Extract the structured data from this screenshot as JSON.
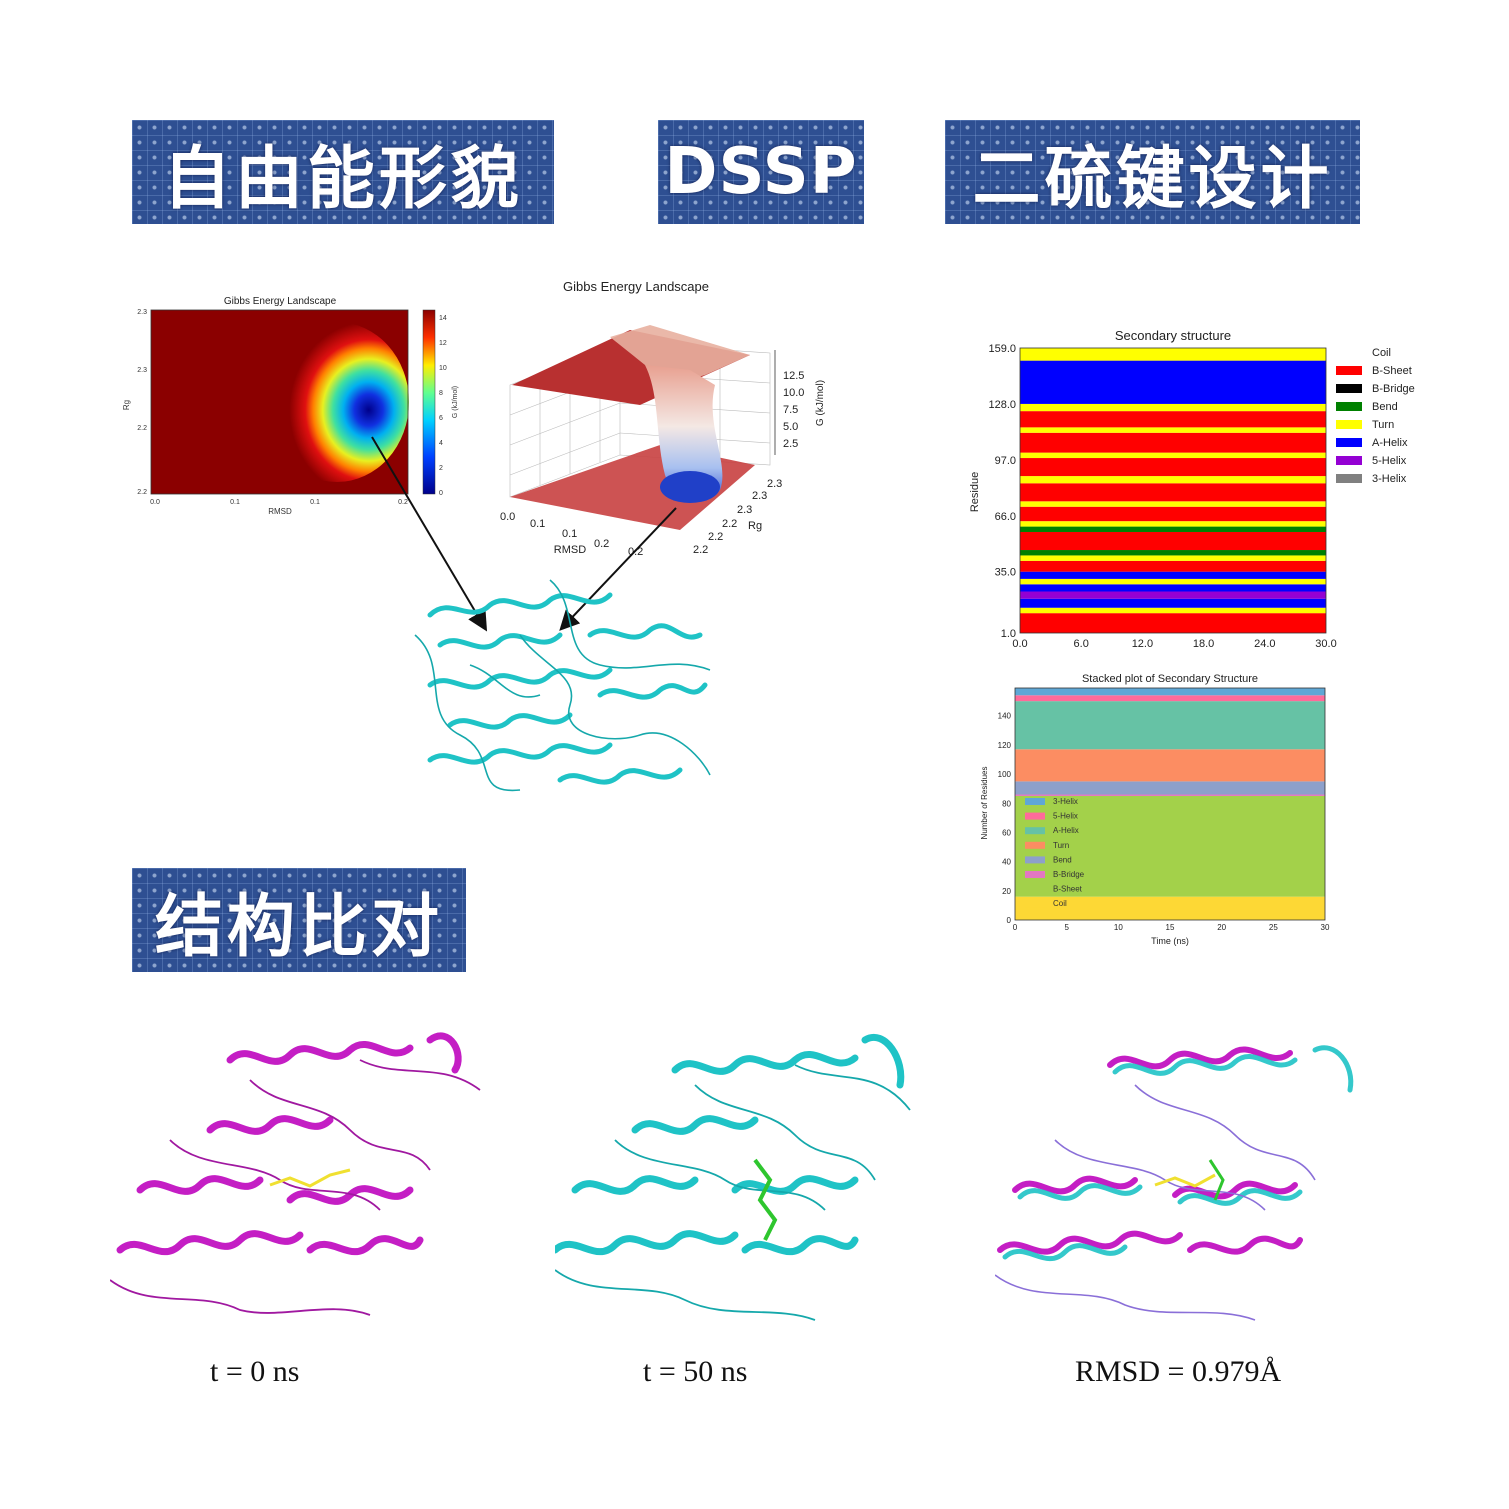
{
  "banners": {
    "free_energy": "自由能形貌",
    "dssp": "DSSP",
    "disulfide": "二硫键设计",
    "alignment": "结构比对"
  },
  "colors": {
    "banner_bg": "#2e4f92",
    "protein_cyan": "#1fc3c6",
    "protein_magenta": "#c41ec4",
    "ligand_yellow": "#f0e030",
    "ligand_green": "#2ec62e"
  },
  "fel2d": {
    "title": "Gibbs Energy Landscape",
    "xlabel": "RMSD",
    "ylabel": "Rg",
    "xticks": [
      "0.0",
      "0.1",
      "0.1",
      "0.2"
    ],
    "yticks": [
      "2.3",
      "2.3",
      "2.2",
      "2.2"
    ],
    "colorbar_label": "G (kJ/mol)",
    "colorbar_ticks": [
      "14",
      "12",
      "10",
      "8",
      "6",
      "4",
      "2",
      "0"
    ]
  },
  "fel3d": {
    "title": "Gibbs Energy Landscape",
    "xlabel": "RMSD",
    "ylabel": "Rg",
    "zlabel": "G (kJ/mol)",
    "xticks": [
      "0.0",
      "0.1",
      "0.1",
      "0.2",
      "0.2"
    ],
    "yticks": [
      "2.2",
      "2.2",
      "2.2",
      "2.3",
      "2.3",
      "2.3"
    ],
    "zticks": [
      "12.5",
      "10.0",
      "7.5",
      "5.0",
      "2.5"
    ]
  },
  "chart_data": [
    {
      "type": "heatmap",
      "title": "Secondary structure",
      "xlabel": "",
      "ylabel": "Residue",
      "xlim": [
        0,
        30
      ],
      "ylim": [
        1,
        159
      ],
      "xticks": [
        "0.0",
        "6.0",
        "12.0",
        "18.0",
        "24.0",
        "30.0"
      ],
      "yticks": [
        "1.0",
        "35.0",
        "66.0",
        "97.0",
        "128.0",
        "159.0"
      ],
      "legend": [
        {
          "name": "Coil",
          "color": "#ffffff"
        },
        {
          "name": "B-Sheet",
          "color": "#ff0000"
        },
        {
          "name": "B-Bridge",
          "color": "#000000"
        },
        {
          "name": "Bend",
          "color": "#008000"
        },
        {
          "name": "Turn",
          "color": "#ffff00"
        },
        {
          "name": "A-Helix",
          "color": "#0000ff"
        },
        {
          "name": "5-Helix",
          "color": "#9400d3"
        },
        {
          "name": "3-Helix",
          "color": "#808080"
        }
      ],
      "bands": [
        {
          "from": 1,
          "to": 12,
          "color": "#ff0000"
        },
        {
          "from": 12,
          "to": 15,
          "color": "#ffff00"
        },
        {
          "from": 15,
          "to": 20,
          "color": "#0000ff"
        },
        {
          "from": 20,
          "to": 24,
          "color": "#9400d3"
        },
        {
          "from": 24,
          "to": 28,
          "color": "#0000ff"
        },
        {
          "from": 28,
          "to": 31,
          "color": "#ffff00"
        },
        {
          "from": 31,
          "to": 35,
          "color": "#0000ff"
        },
        {
          "from": 35,
          "to": 41,
          "color": "#ff0000"
        },
        {
          "from": 41,
          "to": 44,
          "color": "#ffff00"
        },
        {
          "from": 44,
          "to": 47,
          "color": "#008000"
        },
        {
          "from": 47,
          "to": 57,
          "color": "#ff0000"
        },
        {
          "from": 57,
          "to": 60,
          "color": "#008000"
        },
        {
          "from": 60,
          "to": 63,
          "color": "#ffff00"
        },
        {
          "from": 63,
          "to": 71,
          "color": "#ff0000"
        },
        {
          "from": 71,
          "to": 74,
          "color": "#ffff00"
        },
        {
          "from": 74,
          "to": 84,
          "color": "#ff0000"
        },
        {
          "from": 84,
          "to": 88,
          "color": "#ffff00"
        },
        {
          "from": 88,
          "to": 98,
          "color": "#ff0000"
        },
        {
          "from": 98,
          "to": 101,
          "color": "#ffff00"
        },
        {
          "from": 101,
          "to": 112,
          "color": "#ff0000"
        },
        {
          "from": 112,
          "to": 115,
          "color": "#ffff00"
        },
        {
          "from": 115,
          "to": 124,
          "color": "#ff0000"
        },
        {
          "from": 124,
          "to": 128,
          "color": "#ffff00"
        },
        {
          "from": 128,
          "to": 152,
          "color": "#0000ff"
        },
        {
          "from": 152,
          "to": 159,
          "color": "#ffff00"
        }
      ]
    },
    {
      "type": "area",
      "title": "Stacked plot of Secondary Structure",
      "xlabel": "Time (ns)",
      "ylabel": "Number of Residues",
      "xlim": [
        0,
        30
      ],
      "ylim": [
        0,
        159
      ],
      "xticks": [
        "0",
        "5",
        "10",
        "15",
        "20",
        "25",
        "30"
      ],
      "yticks": [
        "0",
        "20",
        "40",
        "60",
        "80",
        "100",
        "120",
        "140"
      ],
      "series": [
        {
          "name": "Coil",
          "value": 16,
          "color": "#fdd835"
        },
        {
          "name": "B-Sheet",
          "value": 69,
          "color": "#a3d14a"
        },
        {
          "name": "B-Bridge",
          "value": 1,
          "color": "#e377c2"
        },
        {
          "name": "Bend",
          "value": 9,
          "color": "#8da0cb"
        },
        {
          "name": "Turn",
          "value": 22,
          "color": "#fc8d62"
        },
        {
          "name": "A-Helix",
          "value": 33,
          "color": "#66c2a5"
        },
        {
          "name": "5-Helix",
          "value": 4,
          "color": "#ff6b9a"
        },
        {
          "name": "3-Helix",
          "value": 5,
          "color": "#5fa7d6"
        }
      ]
    }
  ],
  "captions": {
    "t0": "t = 0 ns",
    "t50": "t = 50 ns",
    "rmsd": "RMSD = 0.979Å"
  }
}
